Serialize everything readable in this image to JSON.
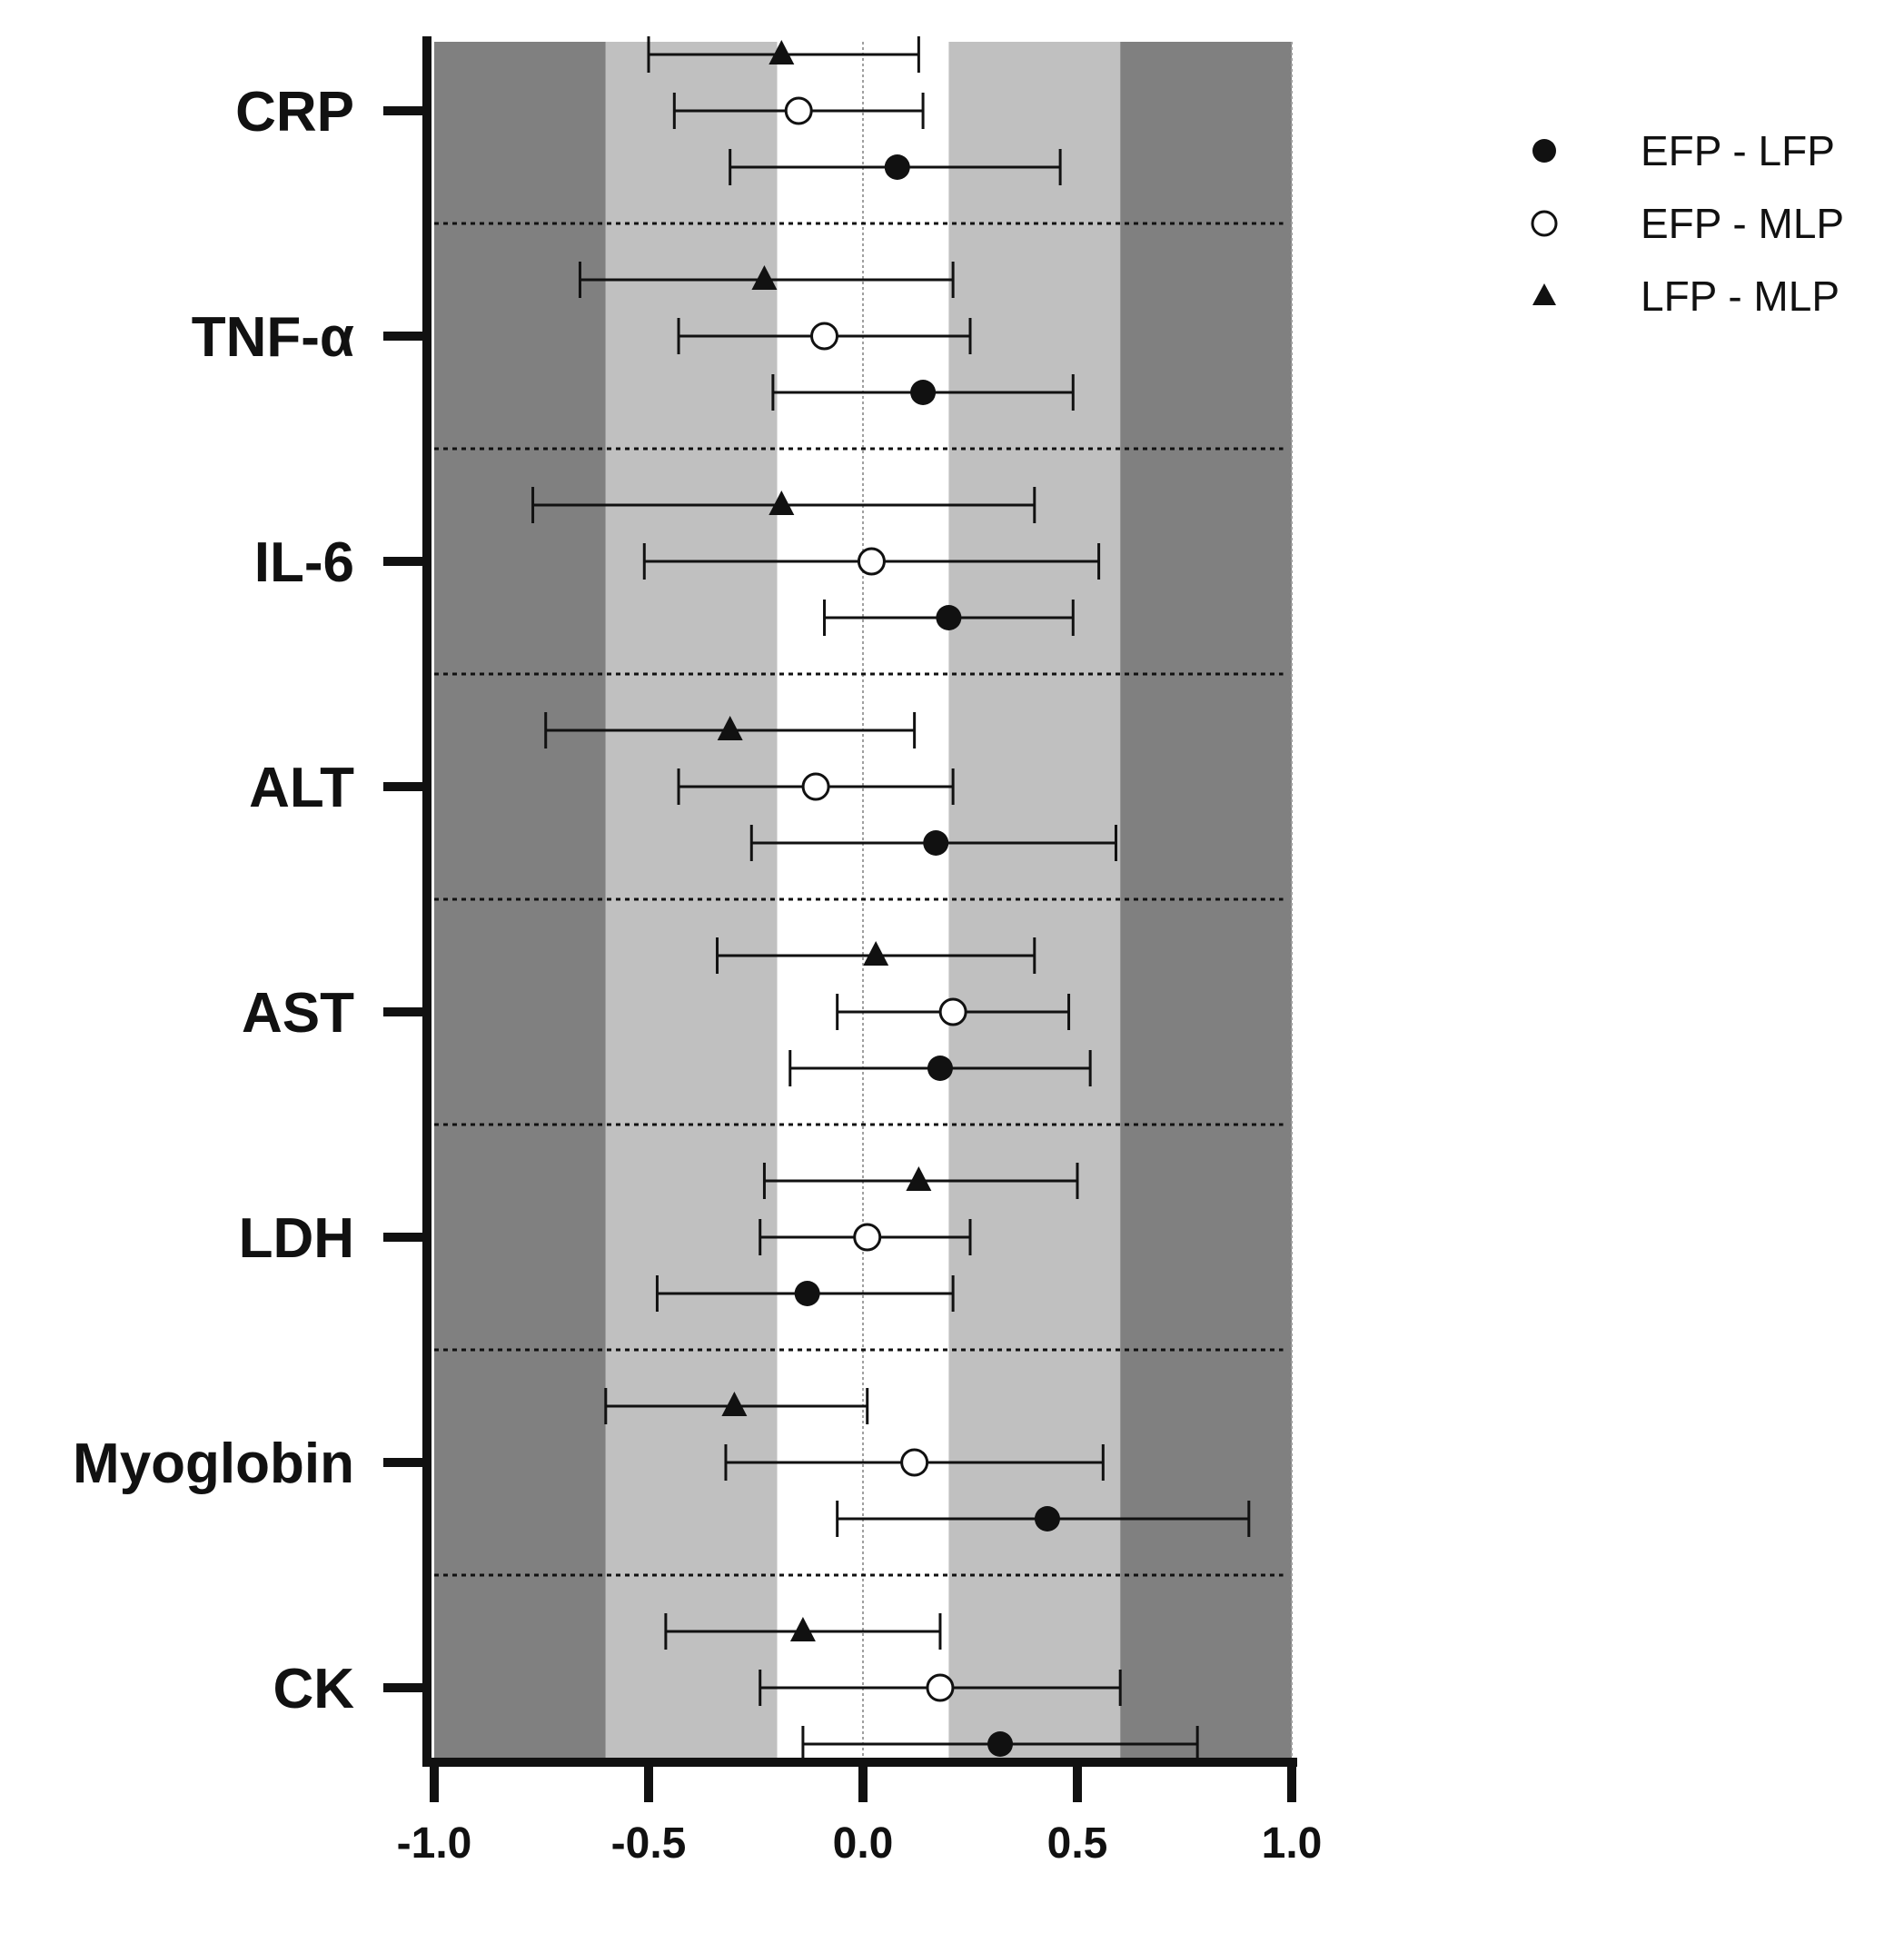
{
  "chart_data": {
    "type": "forest",
    "title": "",
    "xlabel": "",
    "ylabel": "",
    "xlim": [
      -1.0,
      1.0
    ],
    "xticks": [
      -1.0,
      -0.5,
      0.0,
      0.5,
      1.0
    ],
    "xtick_labels": [
      "-1.0",
      "-0.5",
      "0.0",
      "0.5",
      "1.0"
    ],
    "bands": [
      {
        "from": -1.0,
        "to": -0.6,
        "color": "#808080"
      },
      {
        "from": -0.6,
        "to": -0.2,
        "color": "#c0c0c0"
      },
      {
        "from": -0.2,
        "to": 0.2,
        "color": "#ffffff"
      },
      {
        "from": 0.2,
        "to": 0.6,
        "color": "#c0c0c0"
      },
      {
        "from": 0.6,
        "to": 1.0,
        "color": "#808080"
      }
    ],
    "categories": [
      "CRP",
      "TNF-α",
      "IL-6",
      "ALT",
      "AST",
      "LDH",
      "Myoglobin",
      "CK"
    ],
    "legend_position": "top-right",
    "series": [
      {
        "name": "EFP - LFP",
        "marker": "filled-circle",
        "values": [
          0.08,
          0.14,
          0.2,
          0.17,
          0.18,
          -0.13,
          0.43,
          0.32
        ],
        "lower": [
          -0.31,
          -0.21,
          -0.09,
          -0.26,
          -0.17,
          -0.48,
          -0.06,
          -0.14
        ],
        "upper": [
          0.46,
          0.49,
          0.49,
          0.59,
          0.53,
          0.21,
          0.9,
          0.78
        ]
      },
      {
        "name": "EFP - MLP",
        "marker": "open-circle",
        "values": [
          -0.15,
          -0.09,
          0.02,
          -0.11,
          0.21,
          0.01,
          0.12,
          0.18
        ],
        "lower": [
          -0.44,
          -0.43,
          -0.51,
          -0.43,
          -0.06,
          -0.24,
          -0.32,
          -0.24
        ],
        "upper": [
          0.14,
          0.25,
          0.55,
          0.21,
          0.48,
          0.25,
          0.56,
          0.6
        ]
      },
      {
        "name": "LFP - MLP",
        "marker": "filled-triangle",
        "values": [
          -0.19,
          -0.23,
          -0.19,
          -0.31,
          0.03,
          0.13,
          -0.3,
          -0.14
        ],
        "lower": [
          -0.5,
          -0.66,
          -0.77,
          -0.74,
          -0.34,
          -0.23,
          -0.6,
          -0.46
        ],
        "upper": [
          0.13,
          0.21,
          0.4,
          0.12,
          0.4,
          0.5,
          0.01,
          0.18
        ]
      }
    ]
  }
}
